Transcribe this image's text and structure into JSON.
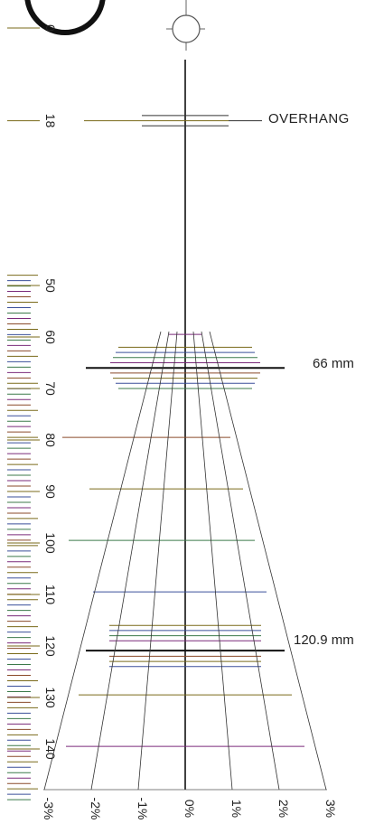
{
  "scale": {
    "tick_labels": [
      "0",
      "18",
      "50",
      "60",
      "70",
      "80",
      "90",
      "100",
      "110",
      "120",
      "130",
      "140"
    ],
    "tick_values": [
      0,
      18,
      50,
      60,
      70,
      80,
      90,
      100,
      110,
      120,
      130,
      140
    ],
    "colors": {
      "black": "#111111",
      "olive": "#7a6a1a",
      "green": "#3c7a4a",
      "blue": "#3a4f9a",
      "purple": "#7a2a7a",
      "brown": "#8a4a2a"
    }
  },
  "labels": {
    "overhang": "OVERHANG",
    "mark_66": "66 mm",
    "mark_120": "120.9 mm"
  },
  "marks": {
    "overhang_value": 18,
    "mark_66_value": 66,
    "mark_120_value": 120.9
  },
  "percent_scale": {
    "labels": [
      "-3%",
      "-2%",
      "-1%",
      "0%",
      "1%",
      "2%",
      "3%"
    ],
    "values": [
      -3,
      -2,
      -1,
      0,
      1,
      2,
      3
    ]
  },
  "icons": {
    "target": "crosshair-circle-icon",
    "logo": "circle-logo-icon"
  }
}
